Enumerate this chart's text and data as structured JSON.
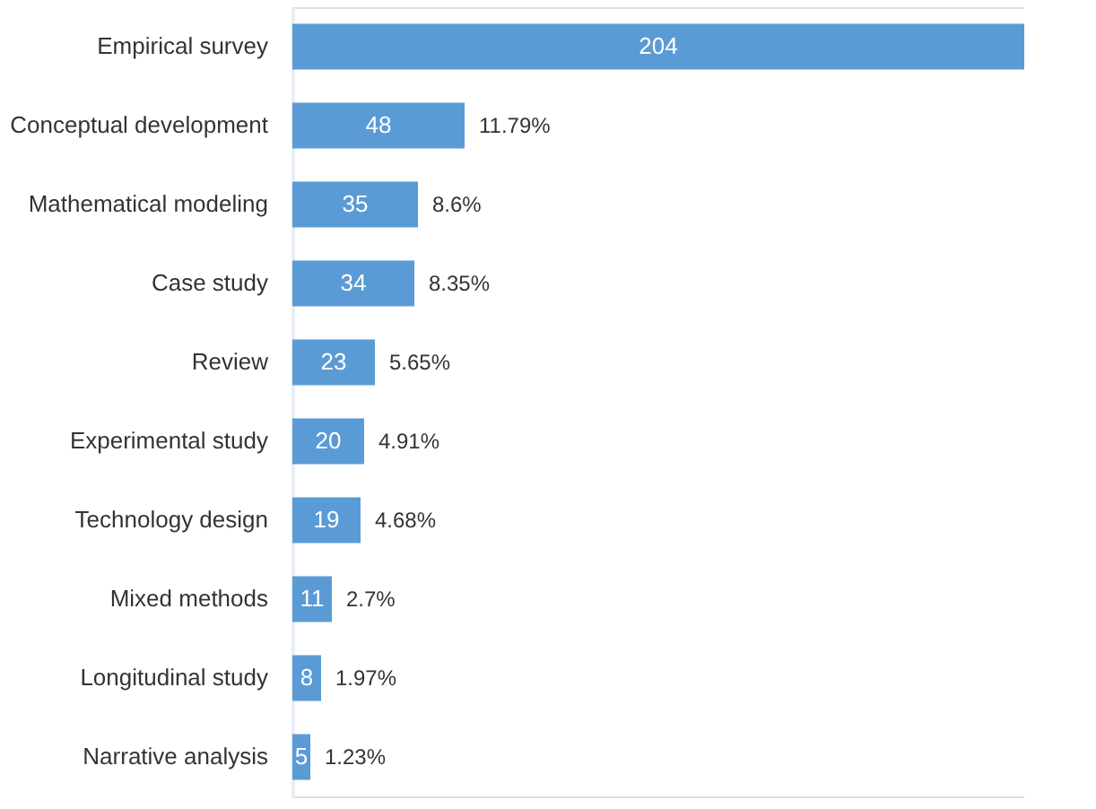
{
  "chart_data": {
    "type": "bar",
    "orientation": "horizontal",
    "data_labels": true,
    "color": "#5b9bd5",
    "categories": [
      "Empirical survey",
      "Conceptual development",
      "Mathematical modeling",
      "Case study",
      "Review",
      "Experimental study",
      "Technology design",
      "Mixed methods",
      "Longitudinal study",
      "Narrative analysis"
    ],
    "values": [
      204,
      48,
      35,
      34,
      23,
      20,
      19,
      11,
      8,
      5
    ],
    "annotations": [
      {
        "text": "11.79%",
        "x": 48,
        "y": "Conceptual development"
      },
      {
        "text": "8.6%",
        "x": 35,
        "y": "Mathematical modeling"
      },
      {
        "text": "8.35%",
        "x": 34,
        "y": "Case study"
      },
      {
        "text": "5.65%",
        "x": 23,
        "y": "Review"
      },
      {
        "text": "4.91%",
        "x": 20,
        "y": "Experimental study"
      },
      {
        "text": "4.68%",
        "x": 19,
        "y": "Technology design"
      },
      {
        "text": "2.7%",
        "x": 11,
        "y": "Mixed methods"
      },
      {
        "text": "1.97%",
        "x": 8,
        "y": "Longitudinal study"
      },
      {
        "text": "1.23%",
        "x": 5,
        "y": "Narrative analysis"
      }
    ]
  }
}
